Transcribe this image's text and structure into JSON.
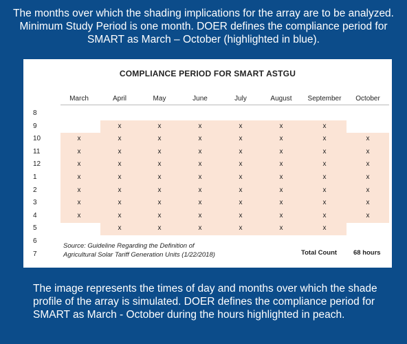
{
  "captions": {
    "top": "The months over which the shading implications for the array are to be analyzed. Minimum Study Period is one month. DOER defines the compliance period for SMART as March – October (highlighted in blue).",
    "bottom": "The image represents the times of day and months over which the shade profile of the array is simulated. DOER defines the compliance period for SMART as March - October during the hours highlighted in peach."
  },
  "chart": {
    "title": "COMPLIANCE PERIOD FOR SMART ASTGU",
    "months": [
      "March",
      "April",
      "May",
      "June",
      "July",
      "August",
      "September",
      "October"
    ],
    "hours": [
      "8",
      "9",
      "10",
      "11",
      "12",
      "1",
      "2",
      "3",
      "4",
      "5",
      "6",
      "7"
    ],
    "mark_symbol": "x",
    "rows": [
      [
        0,
        0,
        0,
        0,
        0,
        0,
        0,
        0
      ],
      [
        0,
        1,
        1,
        1,
        1,
        1,
        1,
        0
      ],
      [
        1,
        1,
        1,
        1,
        1,
        1,
        1,
        1
      ],
      [
        1,
        1,
        1,
        1,
        1,
        1,
        1,
        1
      ],
      [
        1,
        1,
        1,
        1,
        1,
        1,
        1,
        1
      ],
      [
        1,
        1,
        1,
        1,
        1,
        1,
        1,
        1
      ],
      [
        1,
        1,
        1,
        1,
        1,
        1,
        1,
        1
      ],
      [
        1,
        1,
        1,
        1,
        1,
        1,
        1,
        1
      ],
      [
        1,
        1,
        1,
        1,
        1,
        1,
        1,
        1
      ],
      [
        0,
        1,
        1,
        1,
        1,
        1,
        1,
        0
      ],
      [
        0,
        0,
        0,
        0,
        0,
        0,
        0,
        0
      ],
      [
        0,
        0,
        0,
        0,
        0,
        0,
        0,
        0
      ]
    ],
    "source_line1": "Source: Guideline Regarding the Definition of",
    "source_line2": "Agricultural Solar Tariff Generation Units (1/22/2018)",
    "total_label": "Total Count",
    "total_value": "68 hours",
    "shade_color": "#fbe4d6"
  }
}
